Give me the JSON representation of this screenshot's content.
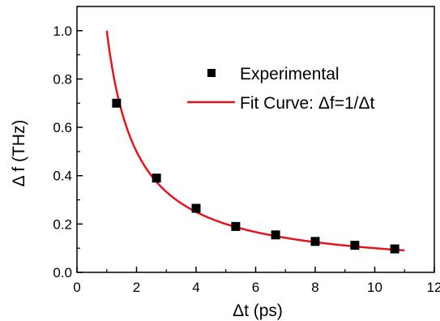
{
  "chart_data": {
    "type": "scatter",
    "xlabel": "Δt (ps)",
    "ylabel": "Δ f (THz)",
    "xlim": [
      0,
      12
    ],
    "ylim": [
      0,
      1.1
    ],
    "xticks": [
      0,
      2,
      4,
      6,
      8,
      10,
      12
    ],
    "yticks": [
      0.0,
      0.2,
      0.4,
      0.6,
      0.8,
      1.0
    ],
    "xtick_labels": [
      "0",
      "2",
      "4",
      "6",
      "8",
      "10",
      "12"
    ],
    "ytick_labels": [
      "0.0",
      "0.2",
      "0.4",
      "0.6",
      "0.8",
      "1.0"
    ],
    "grid": false,
    "legend_position": "top-right",
    "series": [
      {
        "name": "Experimental",
        "kind": "scatter",
        "marker": "square",
        "color": "#000000",
        "x": [
          1.33,
          2.67,
          4.0,
          5.33,
          6.67,
          8.0,
          9.33,
          10.67
        ],
        "y": [
          0.7,
          0.39,
          0.265,
          0.19,
          0.155,
          0.128,
          0.112,
          0.097
        ]
      },
      {
        "name": "Fit Curve: Δf=1/Δt",
        "kind": "line",
        "color": "#e8141c",
        "function": "1/x",
        "x_range": [
          1.0,
          11.0
        ]
      }
    ]
  }
}
